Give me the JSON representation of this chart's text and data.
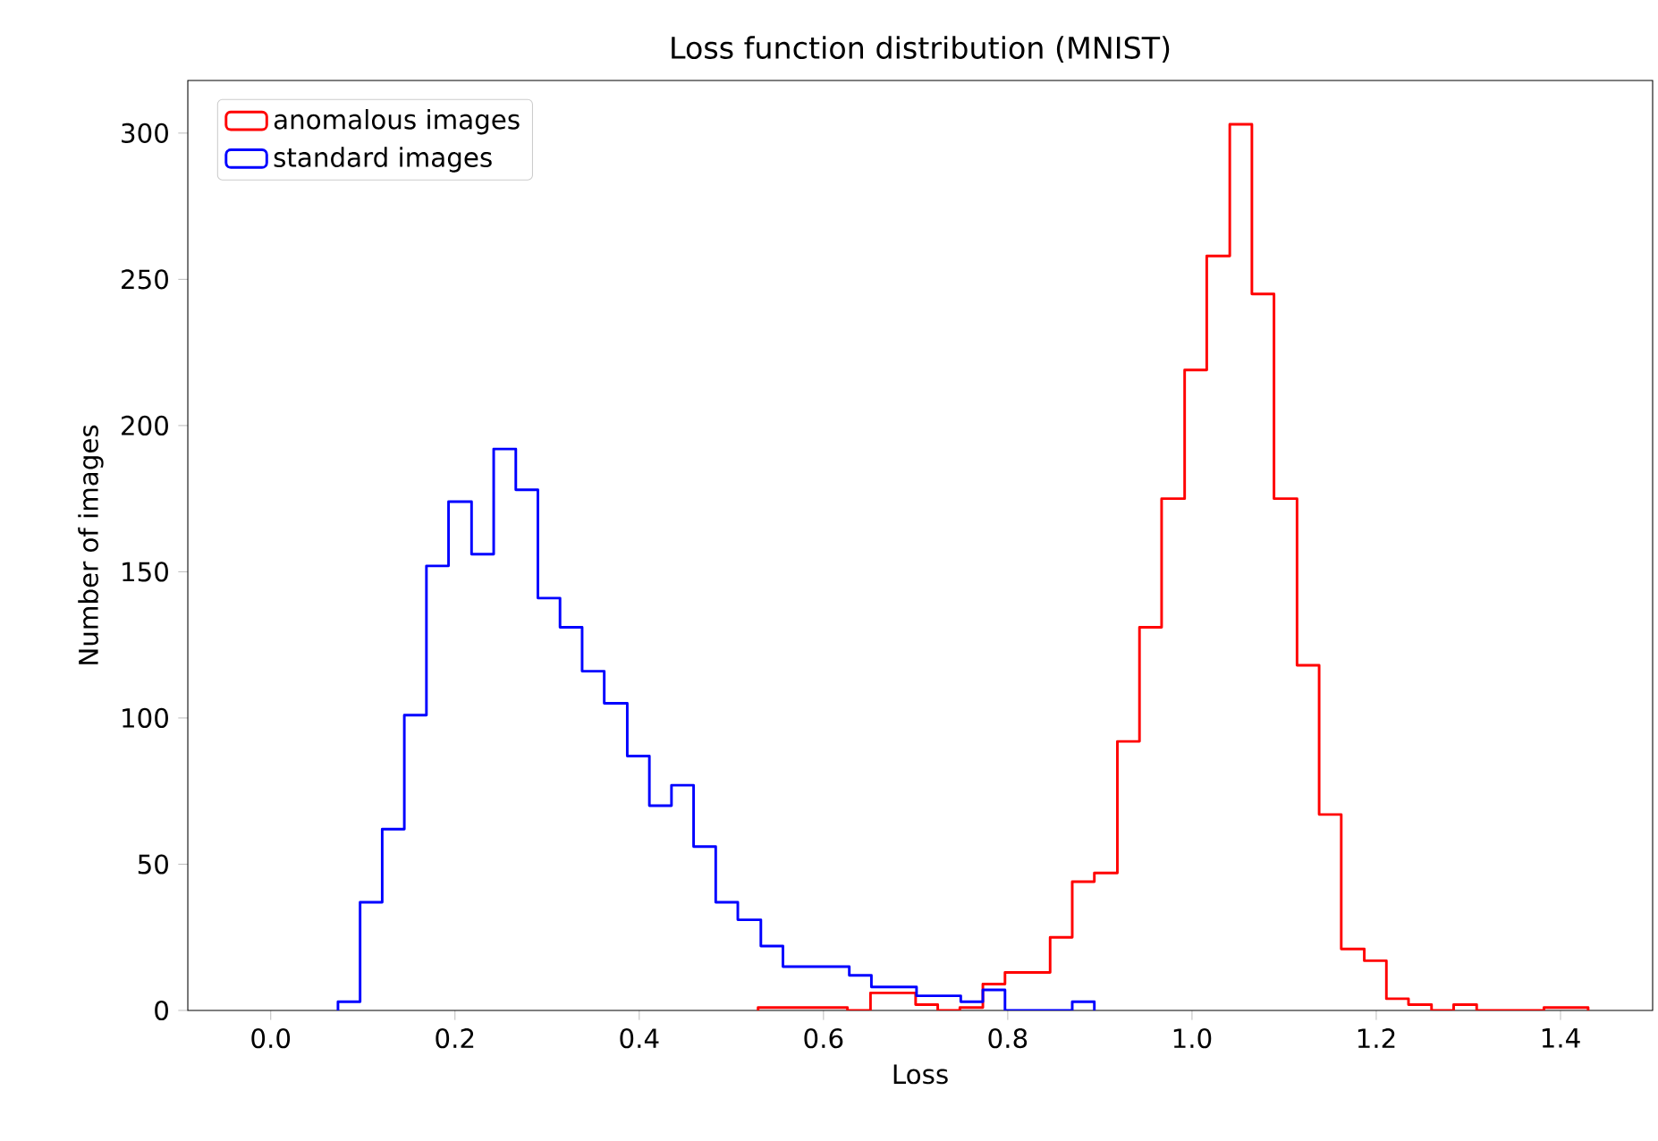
{
  "chart_data": {
    "type": "step",
    "title": "Loss function distribution (MNIST)",
    "xlabel": "Loss",
    "ylabel": "Number of images",
    "xlim": [
      -0.09,
      1.5
    ],
    "ylim": [
      0,
      318
    ],
    "xticks": [
      {
        "value": 0,
        "label": "0.0"
      },
      {
        "value": 0.2,
        "label": "0.2"
      },
      {
        "value": 0.4,
        "label": "0.4"
      },
      {
        "value": 0.6,
        "label": "0.6"
      },
      {
        "value": 0.8,
        "label": "0.8"
      },
      {
        "value": 1,
        "label": "1.0"
      },
      {
        "value": 1.2,
        "label": "1.2"
      },
      {
        "value": 1.4,
        "label": "1.4"
      }
    ],
    "yticks": [
      {
        "value": 0,
        "label": "0"
      },
      {
        "value": 50,
        "label": "50"
      },
      {
        "value": 100,
        "label": "100"
      },
      {
        "value": 150,
        "label": "150"
      },
      {
        "value": 200,
        "label": "200"
      },
      {
        "value": 250,
        "label": "250"
      },
      {
        "value": 300,
        "label": "300"
      }
    ],
    "legend": "top left",
    "grid": false,
    "series": [
      {
        "name": "anomalous images",
        "color": "#ff0000",
        "x": [
          0.529,
          0.529,
          0.553,
          0.578,
          0.602,
          0.626,
          0.651,
          0.675,
          0.7,
          0.724,
          0.748,
          0.773,
          0.797,
          0.821,
          0.846,
          0.87,
          0.894,
          0.919,
          0.943,
          0.967,
          0.992,
          1.016,
          1.041,
          1.065,
          1.089,
          1.114,
          1.138,
          1.162,
          1.187,
          1.211,
          1.235,
          1.26,
          1.284,
          1.309,
          1.333,
          1.357,
          1.382,
          1.406,
          1.43
        ],
        "values": [
          0,
          1,
          1,
          1,
          1,
          0,
          6,
          6,
          2,
          0,
          1,
          9,
          13,
          13,
          25,
          44,
          47,
          92,
          131,
          175,
          219,
          258,
          303,
          245,
          175,
          118,
          67,
          21,
          17,
          4,
          2,
          0,
          2,
          0,
          0,
          0,
          1,
          1,
          0
        ]
      },
      {
        "name": "standard images",
        "color": "#0000ff",
        "x": [
          0.073,
          0.073,
          0.097,
          0.121,
          0.145,
          0.169,
          0.193,
          0.218,
          0.242,
          0.266,
          0.29,
          0.314,
          0.338,
          0.362,
          0.387,
          0.411,
          0.435,
          0.459,
          0.483,
          0.507,
          0.532,
          0.556,
          0.58,
          0.604,
          0.628,
          0.652,
          0.677,
          0.701,
          0.725,
          0.749,
          0.773,
          0.797,
          0.822,
          0.846,
          0.87,
          0.894
        ],
        "values": [
          0,
          3,
          37,
          62,
          101,
          152,
          174,
          156,
          192,
          178,
          141,
          131,
          116,
          105,
          87,
          70,
          77,
          56,
          37,
          31,
          22,
          15,
          15,
          15,
          12,
          8,
          8,
          5,
          5,
          3,
          7,
          0,
          0,
          0,
          3,
          0
        ]
      }
    ]
  }
}
